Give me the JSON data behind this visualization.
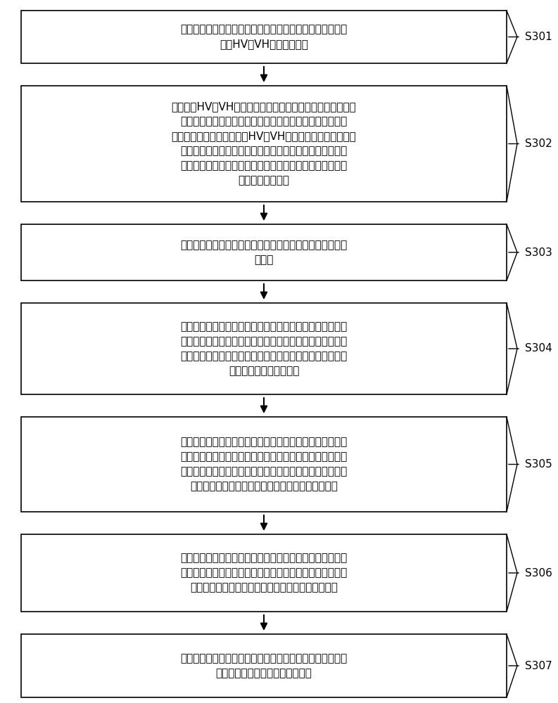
{
  "background_color": "#ffffff",
  "box_border_color": "#000000",
  "box_fill_color": "#ffffff",
  "arrow_color": "#000000",
  "label_color": "#000000",
  "font_size": 11,
  "label_font_size": 11,
  "steps": [
    {
      "id": "S301",
      "text": "获取待分离的合成孔径雷达图像，所述合成孔径雷达图像中\n包括HV或VH交叉极化图像",
      "label": "S301"
    },
    {
      "id": "S302",
      "text": "计算所述HV或VH交叉极化图像中每个第一区域所对应的至少\n两种纹理信息，得到分别反映所述至少两种纹理信息的至少\n两个纹理特征；其中，所述HV或VH交叉极化图像由多个所述\n第一区域组成，其中，不同所述第一区域的面积大小相等，\n且不同第一区域之间互不重叠；所述至少两个纹理特征包括\n能量特征和熵特征",
      "label": "S302"
    },
    {
      "id": "S303",
      "text": "确定所述至少两个纹理特征中的至少一个目标纹理特征的梯\n度矩阵",
      "label": "S303"
    },
    {
      "id": "S304",
      "text": "确定所述梯度矩阵的每个第二区域中梯度极大值点，以及，\n最小值点，得到一个点集合；所述梯度矩阵由多个所述第二\n区域组成，其中，不同所述第二区域的面积大小相等，且不\n同第二区域之间互不重叠",
      "label": "S304"
    },
    {
      "id": "S305",
      "text": "分别确定所述点集合中每个点附近的多个极大值点，并将所\n述多个极大值点所形成的闭合区域确定为斑块，得到至少两\n个斑块，所述至少两个斑块中，至少存在一个全部为海冰信\n息的斑块，且，至少存在一个全部为海水信息的斑块",
      "label": "S305"
    },
    {
      "id": "S306",
      "text": "根据每个所述斑块分别在能量特征与熵特征中所包含的特征\n值，将能量平均值大于预设能量阈值的斑块确定为海水样本\n，将熵平均值大于预设熵阈值的斑块确定为海冰样本",
      "label": "S306"
    },
    {
      "id": "S307",
      "text": "基于所述海冰样本和所述海水样本，从所述合成孔径雷达图\n像中分离出海冰信息以及海水信息",
      "label": "S307"
    }
  ]
}
